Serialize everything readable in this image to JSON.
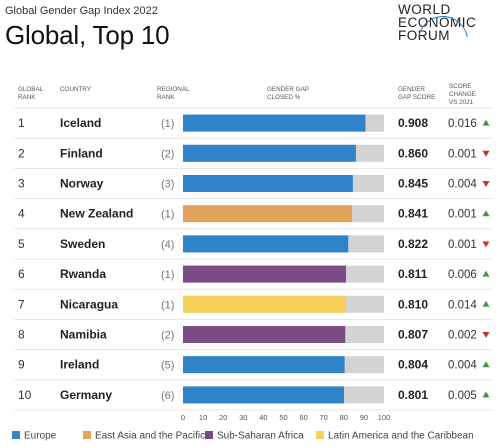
{
  "subtitle": "Global Gender Gap Index 2022",
  "title": "Global, Top 10",
  "logo": {
    "line1": "WORLD",
    "line2": "ECONOMIC",
    "line3": "FORUM"
  },
  "headers": {
    "rank": "GLOBAL\nRANK",
    "country": "COUNTRY",
    "regional_rank": "REGIONAL\nRANK",
    "gap_closed": "GENDER GAP\nCLOSED %",
    "score": "GENDER\nGAP SCORE",
    "change": "SCORE\nCHANGE\nVS 2021"
  },
  "colors": {
    "Europe": "#2f83c8",
    "East Asia and the Pacific": "#e2a35d",
    "Sub-Saharan Africa": "#7b4b86",
    "Latin America and the Caribbean": "#f7d25a",
    "remainder": "#d3d3d3",
    "up": "#3a9a4a",
    "down": "#c0392b"
  },
  "chart_data": {
    "type": "bar",
    "orientation": "horizontal",
    "xlim": [
      0,
      100
    ],
    "xticks": [
      0,
      10,
      20,
      30,
      40,
      50,
      60,
      70,
      80,
      90,
      100
    ],
    "rows": [
      {
        "rank": "1",
        "country": "Iceland",
        "regional_rank": "(1)",
        "region": "Europe",
        "score": "0.908",
        "value": 90.8,
        "change": "0.016",
        "direction": "up"
      },
      {
        "rank": "2",
        "country": "Finland",
        "regional_rank": "(2)",
        "region": "Europe",
        "score": "0.860",
        "value": 86.0,
        "change": "0.001",
        "direction": "down"
      },
      {
        "rank": "3",
        "country": "Norway",
        "regional_rank": "(3)",
        "region": "Europe",
        "score": "0.845",
        "value": 84.5,
        "change": "0.004",
        "direction": "down"
      },
      {
        "rank": "4",
        "country": "New Zealand",
        "regional_rank": "(1)",
        "region": "East Asia and the Pacific",
        "score": "0.841",
        "value": 84.1,
        "change": "0.001",
        "direction": "up"
      },
      {
        "rank": "5",
        "country": "Sweden",
        "regional_rank": "(4)",
        "region": "Europe",
        "score": "0.822",
        "value": 82.2,
        "change": "0.001",
        "direction": "down"
      },
      {
        "rank": "6",
        "country": "Rwanda",
        "regional_rank": "(1)",
        "region": "Sub-Saharan Africa",
        "score": "0.811",
        "value": 81.1,
        "change": "0.006",
        "direction": "up"
      },
      {
        "rank": "7",
        "country": "Nicaragua",
        "regional_rank": "(1)",
        "region": "Latin America and the Caribbean",
        "score": "0.810",
        "value": 81.0,
        "change": "0.014",
        "direction": "up"
      },
      {
        "rank": "8",
        "country": "Namibia",
        "regional_rank": "(2)",
        "region": "Sub-Saharan Africa",
        "score": "0.807",
        "value": 80.7,
        "change": "0.002",
        "direction": "down"
      },
      {
        "rank": "9",
        "country": "Ireland",
        "regional_rank": "(5)",
        "region": "Europe",
        "score": "0.804",
        "value": 80.4,
        "change": "0.004",
        "direction": "up"
      },
      {
        "rank": "10",
        "country": "Germany",
        "regional_rank": "(6)",
        "region": "Europe",
        "score": "0.801",
        "value": 80.1,
        "change": "0.005",
        "direction": "up"
      }
    ],
    "legend": [
      "Europe",
      "East Asia and the Pacific",
      "Sub-Saharan Africa",
      "Latin America and the Caribbean"
    ],
    "legend_position": "bottom"
  }
}
